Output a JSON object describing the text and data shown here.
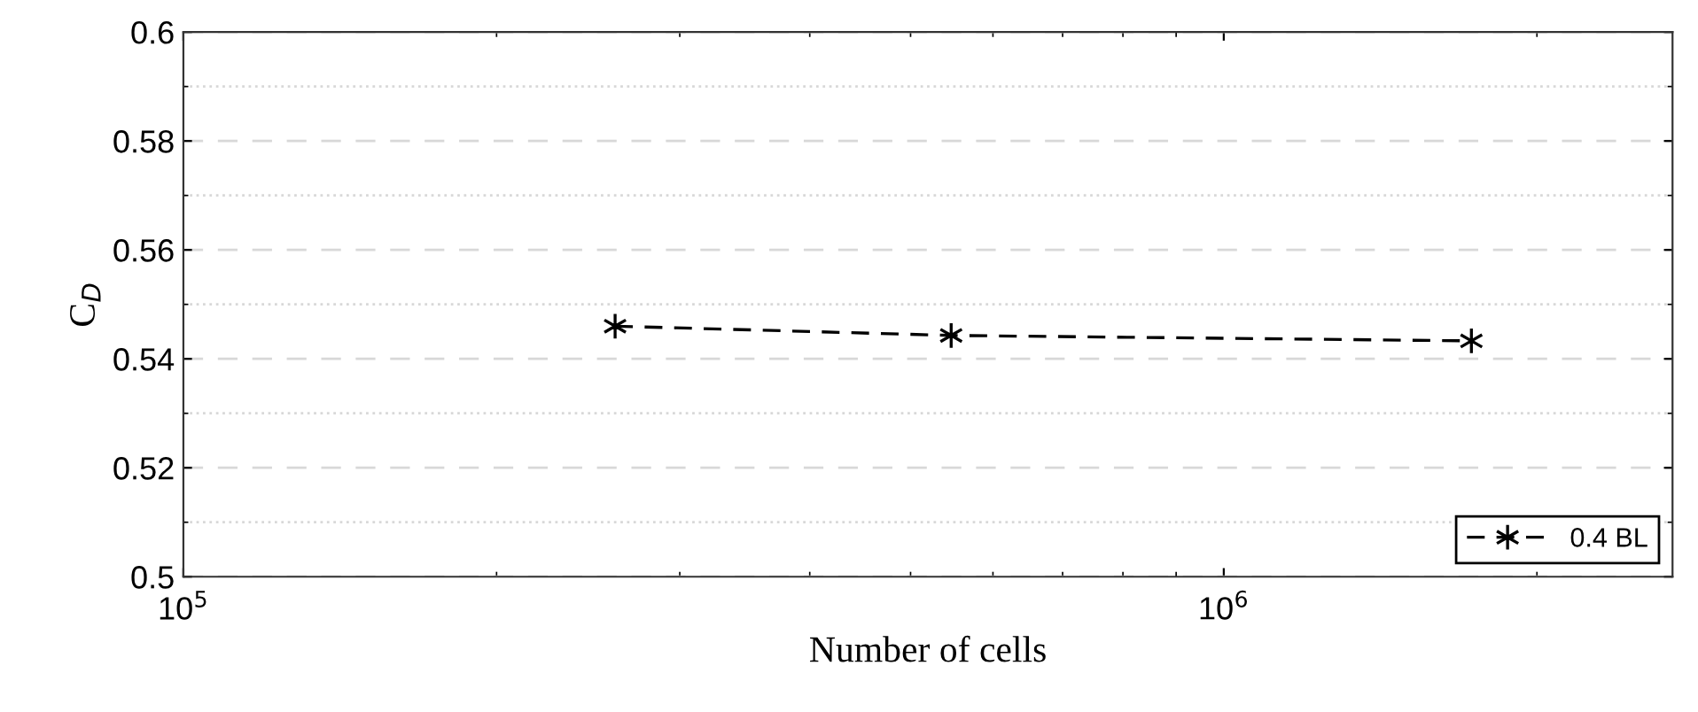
{
  "chart_data": {
    "type": "line",
    "xlabel": "Number of cells",
    "ylabel": "C$_{D}$",
    "x": [
      260000,
      547000,
      1730000
    ],
    "series": [
      {
        "name": "0.4 BL",
        "color": "#000000",
        "values": [
          0.546,
          0.5443,
          0.5433
        ]
      }
    ],
    "log": "x",
    "xlim": [
      100000,
      2700000
    ],
    "xticks": [
      {
        "value": 100000,
        "label": "10$^{5}$"
      },
      {
        "value": 1000000,
        "label": "10$^{6}$"
      }
    ],
    "ylim": [
      0.5,
      0.6
    ],
    "yticks": [
      0.5,
      0.52,
      0.54,
      0.56,
      0.58,
      0.6
    ],
    "grid": "y",
    "legend": "bottom right",
    "marker": "cross",
    "line_style": "dashed"
  }
}
